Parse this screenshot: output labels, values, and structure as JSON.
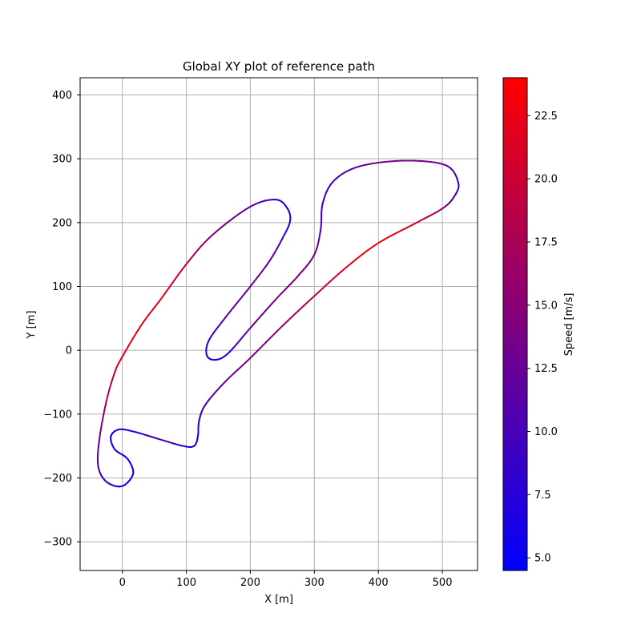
{
  "chart_data": {
    "type": "line",
    "title": "Global XY plot of reference path",
    "xlabel": "X [m]",
    "ylabel": "Y [m]",
    "xlim": [
      -66,
      555
    ],
    "ylim": [
      -345,
      427
    ],
    "xticks": [
      0,
      100,
      200,
      300,
      400,
      500
    ],
    "yticks": [
      -300,
      -200,
      -100,
      0,
      100,
      200,
      300,
      400
    ],
    "grid": true,
    "colorbar": {
      "label": "Speed [m/s]",
      "range": [
        4.5,
        24
      ],
      "ticks": [
        "5.0",
        "7.5",
        "10.0",
        "12.5",
        "15.0",
        "17.5",
        "20.0",
        "22.5"
      ],
      "tick_values": [
        5.0,
        7.5,
        10.0,
        12.5,
        15.0,
        17.5,
        20.0,
        22.5
      ],
      "color_low": "#0000ff",
      "color_high": "#ff0000"
    },
    "path": {
      "name": "reference path",
      "points": [
        {
          "x": 0,
          "y": -10,
          "v": 22
        },
        {
          "x": 30,
          "y": 40,
          "v": 23
        },
        {
          "x": 60,
          "y": 80,
          "v": 22
        },
        {
          "x": 100,
          "y": 135,
          "v": 19
        },
        {
          "x": 140,
          "y": 180,
          "v": 15
        },
        {
          "x": 200,
          "y": 225,
          "v": 11
        },
        {
          "x": 240,
          "y": 236,
          "v": 8
        },
        {
          "x": 258,
          "y": 222,
          "v": 7
        },
        {
          "x": 262,
          "y": 202,
          "v": 7
        },
        {
          "x": 250,
          "y": 175,
          "v": 9
        },
        {
          "x": 230,
          "y": 140,
          "v": 12
        },
        {
          "x": 200,
          "y": 100,
          "v": 12
        },
        {
          "x": 160,
          "y": 50,
          "v": 11
        },
        {
          "x": 135,
          "y": 15,
          "v": 8
        },
        {
          "x": 132,
          "y": -8,
          "v": 7
        },
        {
          "x": 145,
          "y": -15,
          "v": 6
        },
        {
          "x": 165,
          "y": -5,
          "v": 8
        },
        {
          "x": 200,
          "y": 35,
          "v": 12
        },
        {
          "x": 240,
          "y": 80,
          "v": 14
        },
        {
          "x": 275,
          "y": 117,
          "v": 14
        },
        {
          "x": 300,
          "y": 150,
          "v": 13
        },
        {
          "x": 310,
          "y": 190,
          "v": 10
        },
        {
          "x": 313,
          "y": 230,
          "v": 9
        },
        {
          "x": 330,
          "y": 265,
          "v": 10
        },
        {
          "x": 370,
          "y": 288,
          "v": 12
        },
        {
          "x": 440,
          "y": 297,
          "v": 14
        },
        {
          "x": 505,
          "y": 290,
          "v": 12
        },
        {
          "x": 525,
          "y": 262,
          "v": 9
        },
        {
          "x": 518,
          "y": 240,
          "v": 10
        },
        {
          "x": 500,
          "y": 222,
          "v": 15
        },
        {
          "x": 460,
          "y": 200,
          "v": 21
        },
        {
          "x": 400,
          "y": 168,
          "v": 23
        },
        {
          "x": 350,
          "y": 130,
          "v": 22
        },
        {
          "x": 300,
          "y": 85,
          "v": 19
        },
        {
          "x": 250,
          "y": 38,
          "v": 16
        },
        {
          "x": 200,
          "y": -12,
          "v": 14
        },
        {
          "x": 160,
          "y": -50,
          "v": 12
        },
        {
          "x": 130,
          "y": -85,
          "v": 10
        },
        {
          "x": 120,
          "y": -110,
          "v": 8
        },
        {
          "x": 118,
          "y": -135,
          "v": 7
        },
        {
          "x": 112,
          "y": -150,
          "v": 7
        },
        {
          "x": 95,
          "y": -150,
          "v": 8
        },
        {
          "x": 60,
          "y": -140,
          "v": 11
        },
        {
          "x": 20,
          "y": -128,
          "v": 9
        },
        {
          "x": -5,
          "y": -124,
          "v": 7
        },
        {
          "x": -18,
          "y": -135,
          "v": 6
        },
        {
          "x": -12,
          "y": -155,
          "v": 6
        },
        {
          "x": 8,
          "y": -170,
          "v": 6
        },
        {
          "x": 17,
          "y": -192,
          "v": 6
        },
        {
          "x": 5,
          "y": -210,
          "v": 6
        },
        {
          "x": -10,
          "y": -213,
          "v": 6
        },
        {
          "x": -28,
          "y": -203,
          "v": 8
        },
        {
          "x": -38,
          "y": -180,
          "v": 10
        },
        {
          "x": -36,
          "y": -140,
          "v": 13
        },
        {
          "x": -25,
          "y": -80,
          "v": 17
        },
        {
          "x": -12,
          "y": -35,
          "v": 20
        },
        {
          "x": 0,
          "y": -10,
          "v": 22
        }
      ]
    }
  }
}
